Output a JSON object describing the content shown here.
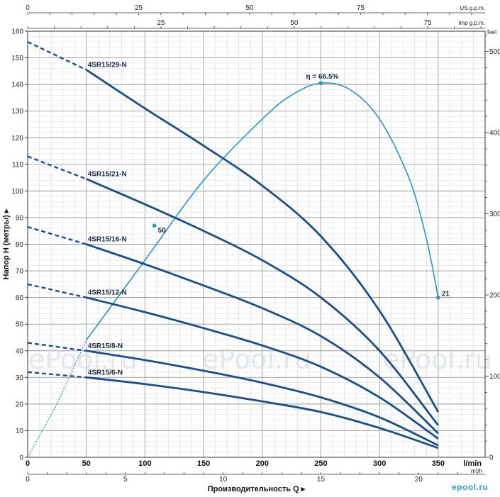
{
  "chart_data": {
    "type": "line",
    "title": "",
    "ylabel": "Напор H (метры)",
    "xlabel": "Производительность Q",
    "ylim": [
      0,
      160
    ],
    "xlim_lmin": [
      0,
      390
    ],
    "y_ticks": [
      0,
      10,
      20,
      30,
      40,
      50,
      60,
      70,
      80,
      90,
      100,
      110,
      120,
      130,
      140,
      150,
      160
    ],
    "x_lmin_ticks": [
      0,
      50,
      100,
      150,
      200,
      250,
      300,
      350
    ],
    "x_lmin_unit": "l/min",
    "x_m3h_ticks": [
      0,
      5,
      10,
      15,
      20
    ],
    "x_m3h_unit": "m³/h",
    "top_us_ticks": [
      0,
      25,
      50,
      75
    ],
    "top_us_unit": "US g.p.m.",
    "top_imp_ticks": [
      25,
      50,
      75
    ],
    "top_imp_unit": "Imp g.p.m.",
    "right_feet_ticks": [
      0,
      100,
      200,
      300,
      400,
      500
    ],
    "right_feet_unit": "feet",
    "grid": true,
    "series": [
      {
        "name": "4SR15/29-N",
        "dashed": [
          [
            0,
            156
          ],
          [
            50,
            145.5
          ]
        ],
        "values": [
          [
            50,
            145.5
          ],
          [
            100,
            131
          ],
          [
            150,
            117
          ],
          [
            200,
            102
          ],
          [
            250,
            83
          ],
          [
            300,
            55
          ],
          [
            350,
            17
          ]
        ]
      },
      {
        "name": "4SR15/21-N",
        "dashed": [
          [
            0,
            113
          ],
          [
            50,
            104.5
          ]
        ],
        "values": [
          [
            50,
            104.5
          ],
          [
            100,
            95
          ],
          [
            150,
            85
          ],
          [
            200,
            74
          ],
          [
            250,
            60
          ],
          [
            300,
            40
          ],
          [
            350,
            12
          ]
        ]
      },
      {
        "name": "4SR15/16-N",
        "dashed": [
          [
            0,
            86.5
          ],
          [
            50,
            80
          ]
        ],
        "values": [
          [
            50,
            80
          ],
          [
            100,
            72.5
          ],
          [
            150,
            64.5
          ],
          [
            200,
            56
          ],
          [
            250,
            45.5
          ],
          [
            300,
            30
          ],
          [
            350,
            9
          ]
        ]
      },
      {
        "name": "4SR15/12-N",
        "dashed": [
          [
            0,
            65
          ],
          [
            50,
            60
          ]
        ],
        "values": [
          [
            50,
            60
          ],
          [
            100,
            54.5
          ],
          [
            150,
            48.5
          ],
          [
            200,
            42
          ],
          [
            250,
            34
          ],
          [
            300,
            22.5
          ],
          [
            350,
            7
          ]
        ]
      },
      {
        "name": "4SR15/8-N",
        "dashed": [
          [
            0,
            43
          ],
          [
            50,
            40
          ]
        ],
        "values": [
          [
            50,
            40
          ],
          [
            100,
            36.5
          ],
          [
            150,
            32.5
          ],
          [
            200,
            28
          ],
          [
            250,
            22.5
          ],
          [
            300,
            15
          ],
          [
            350,
            4.5
          ]
        ]
      },
      {
        "name": "4SR15/6-N",
        "dashed": [
          [
            0,
            32
          ],
          [
            50,
            30
          ]
        ],
        "values": [
          [
            50,
            30
          ],
          [
            100,
            27.5
          ],
          [
            150,
            24.5
          ],
          [
            200,
            21
          ],
          [
            250,
            17
          ],
          [
            300,
            11
          ],
          [
            350,
            3.5
          ]
        ]
      }
    ],
    "efficiency": {
      "dashed": [
        [
          0,
          0
        ],
        [
          25,
          20
        ],
        [
          50,
          44
        ]
      ],
      "values": [
        [
          50,
          44
        ],
        [
          100,
          74
        ],
        [
          150,
          104
        ],
        [
          200,
          127
        ],
        [
          225,
          136
        ],
        [
          250,
          140.5
        ],
        [
          275,
          138
        ],
        [
          300,
          127
        ],
        [
          325,
          105
        ],
        [
          340,
          82
        ],
        [
          350,
          60
        ]
      ],
      "points": [
        {
          "x": 108,
          "y": 87,
          "label": "50"
        },
        {
          "x": 250,
          "y": 140.5,
          "label": "η = 66.5%"
        },
        {
          "x": 350,
          "y": 60,
          "label": "21"
        }
      ]
    }
  },
  "watermark": "ePool.ru",
  "logo_text": "epool.ru"
}
